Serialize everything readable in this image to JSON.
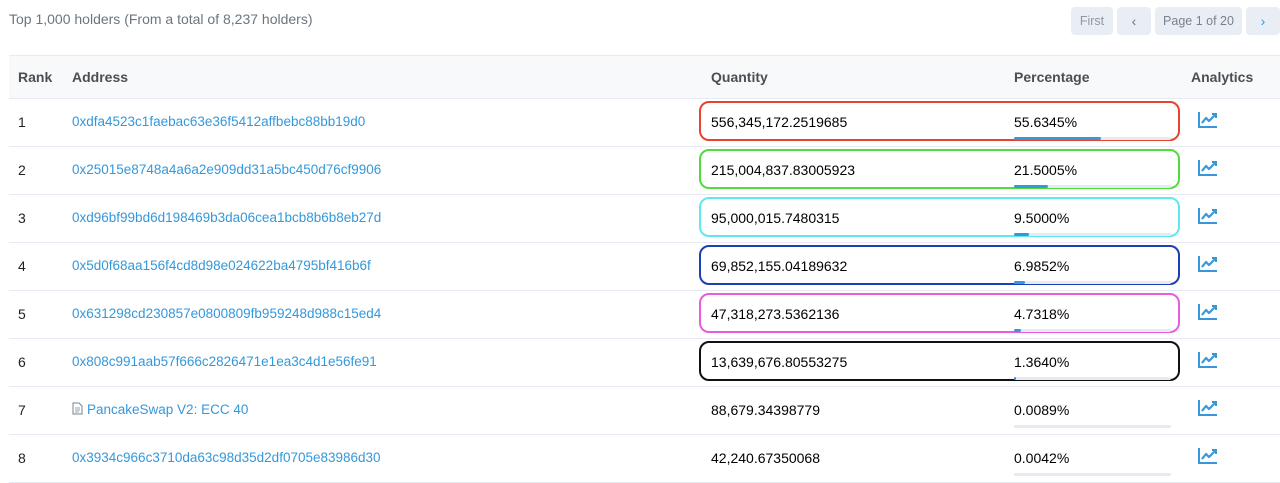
{
  "summary": "Top 1,000 holders (From a total of 8,237 holders)",
  "pager": {
    "first": "First",
    "prev": "‹",
    "info": "Page 1 of 20",
    "next": "›"
  },
  "columns": {
    "rank": "Rank",
    "address": "Address",
    "quantity": "Quantity",
    "percentage": "Percentage",
    "analytics": "Analytics"
  },
  "analytics_icon": "chart-line-icon",
  "accent_color": "#3498db",
  "rows": [
    {
      "rank": "1",
      "address": "0xdfa4523c1faebac63e36f5412affbebc88bb19d0",
      "quantity": "556,345,172.2519685",
      "percentage": "55.6345%",
      "pct": 55.6345,
      "highlight": "#e8432f"
    },
    {
      "rank": "2",
      "address": "0x25015e8748a4a6a2e909dd31a5bc450d76cf9906",
      "quantity": "215,004,837.83005923",
      "percentage": "21.5005%",
      "pct": 21.5005,
      "highlight": "#4fdc3c"
    },
    {
      "rank": "3",
      "address": "0xd96bf99bd6d198469b3da06cea1bcb8b6b8eb27d",
      "quantity": "95,000,015.7480315",
      "percentage": "9.5000%",
      "pct": 9.5,
      "highlight": "#5ee9ec"
    },
    {
      "rank": "4",
      "address": "0x5d0f68aa156f4cd8d98e024622ba4795bf416b6f",
      "quantity": "69,852,155.04189632",
      "percentage": "6.9852%",
      "pct": 6.9852,
      "highlight": "#1d3fb5"
    },
    {
      "rank": "5",
      "address": "0x631298cd230857e0800809fb959248d988c15ed4",
      "quantity": "47,318,273.5362136",
      "percentage": "4.7318%",
      "pct": 4.7318,
      "highlight": "#e85ce0"
    },
    {
      "rank": "6",
      "address": "0x808c991aab57f666c2826471e1ea3c4d1e56fe91",
      "quantity": "13,639,676.80553275",
      "percentage": "1.3640%",
      "pct": 1.364,
      "highlight": "#111111"
    },
    {
      "rank": "7",
      "address": "PancakeSwap V2: ECC 40",
      "is_contract": true,
      "quantity": "88,679.34398779",
      "percentage": "0.0089%",
      "pct": 0.0089,
      "highlight": ""
    },
    {
      "rank": "8",
      "address": "0x3934c966c3710da63c98d35d2df0705e83986d30",
      "quantity": "42,240.67350068",
      "percentage": "0.0042%",
      "pct": 0.0042,
      "highlight": ""
    }
  ]
}
